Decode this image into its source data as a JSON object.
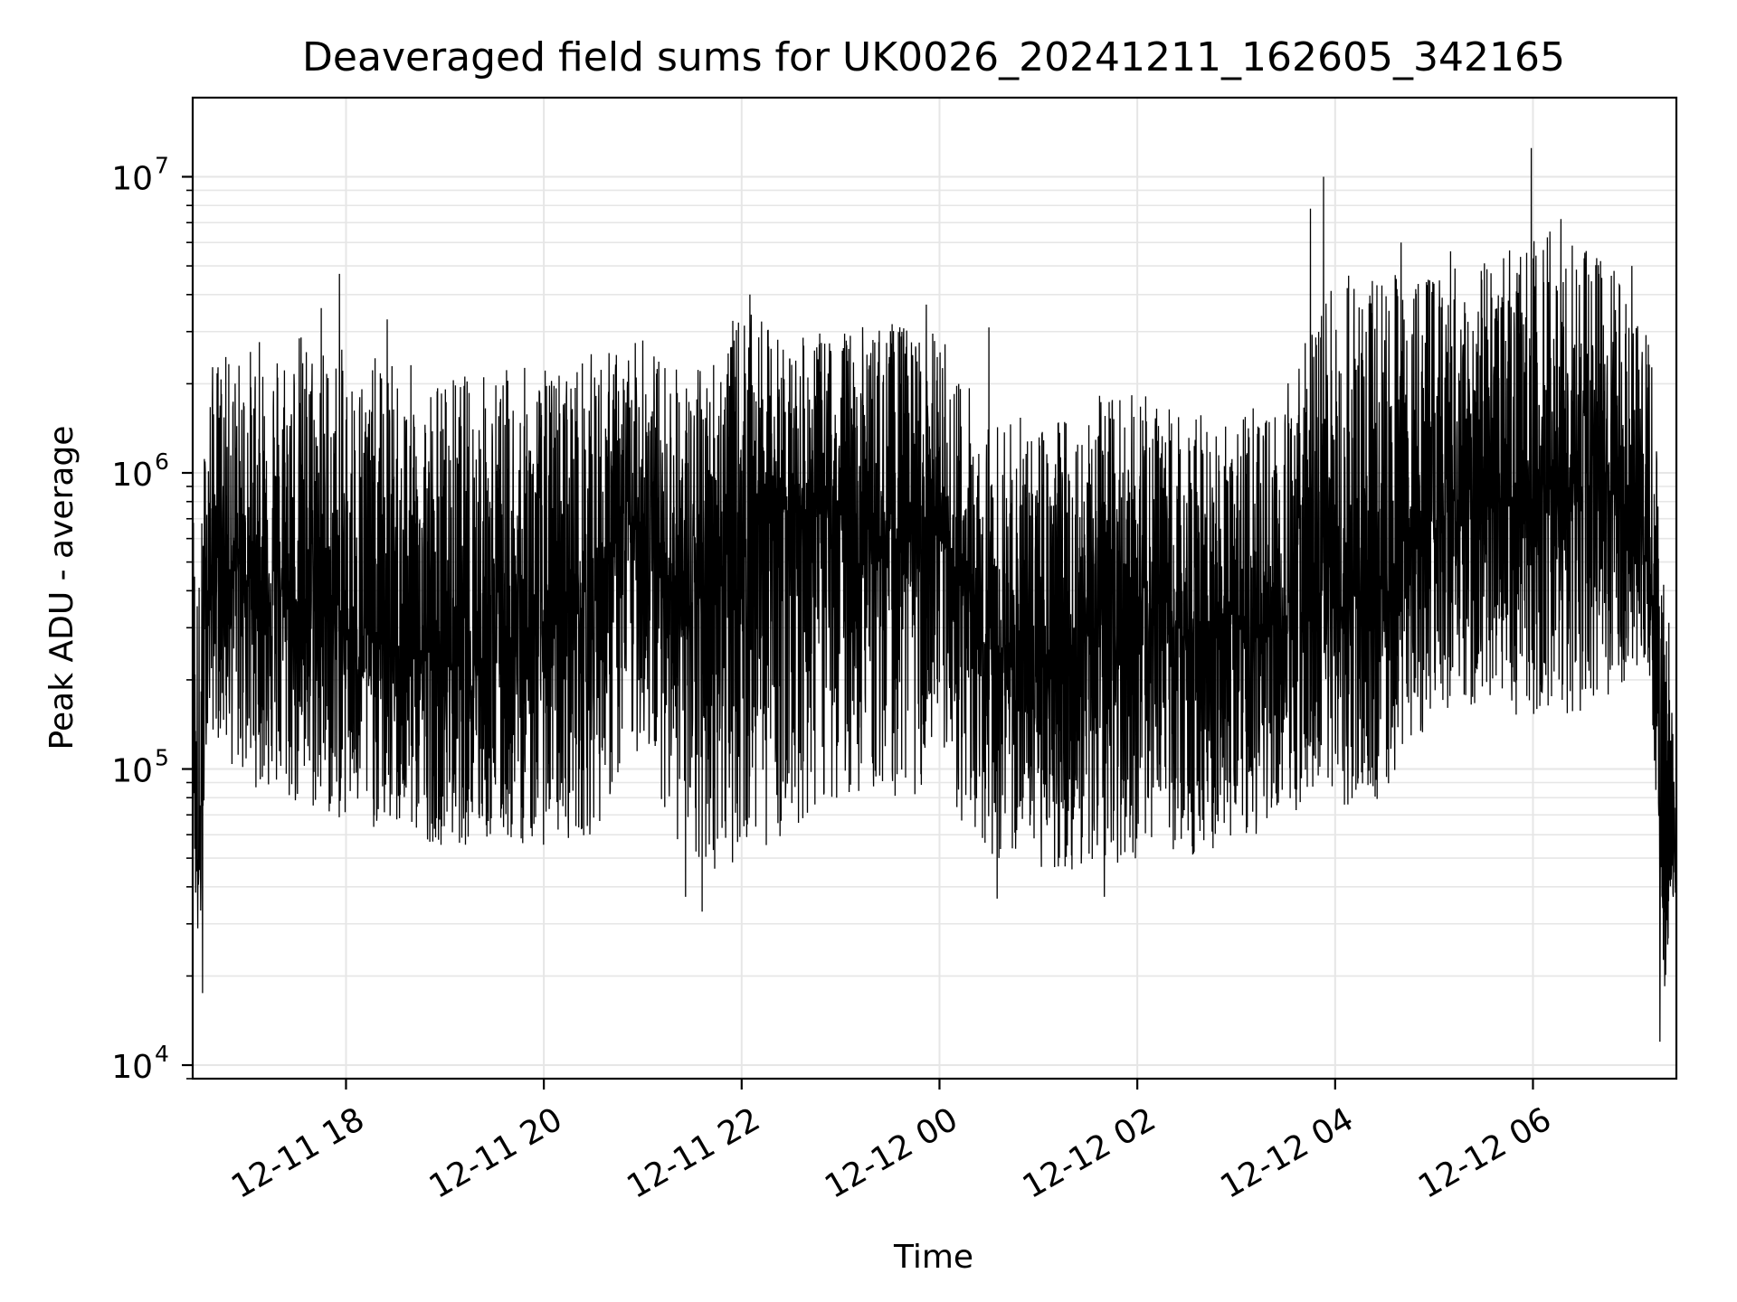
{
  "chart_data": {
    "type": "line",
    "title": "Deaveraged field sums for UK0026_20241211_162605_342165",
    "xlabel": "Time",
    "ylabel": "Peak ADU - average",
    "yscale": "log",
    "ylim": [
      9000,
      18500000
    ],
    "xlim": [
      "2024-12-11 16:27",
      "2024-12-12 07:27"
    ],
    "grid": true,
    "line_color": "#000000",
    "grid_color": "#e6e6e6",
    "x_ticks": [
      {
        "value": "2024-12-11 18:00",
        "label": "12-11 18"
      },
      {
        "value": "2024-12-11 20:00",
        "label": "12-11 20"
      },
      {
        "value": "2024-12-11 22:00",
        "label": "12-11 22"
      },
      {
        "value": "2024-12-12 00:00",
        "label": "12-12 00"
      },
      {
        "value": "2024-12-12 02:00",
        "label": "12-12 02"
      },
      {
        "value": "2024-12-12 04:00",
        "label": "12-12 04"
      },
      {
        "value": "2024-12-12 06:00",
        "label": "12-12 06"
      }
    ],
    "y_ticks": [
      {
        "value": 10000,
        "base": "10",
        "exp": "4"
      },
      {
        "value": 100000,
        "base": "10",
        "exp": "5"
      },
      {
        "value": 1000000,
        "base": "10",
        "exp": "6"
      },
      {
        "value": 10000000,
        "base": "10",
        "exp": "7"
      }
    ],
    "series": [
      {
        "x": [
          "2024-12-11 16:27",
          "2024-12-11 16:29",
          "2024-12-11 16:31",
          "2024-12-11 16:33",
          "2024-12-11 16:35",
          "2024-12-11 16:40",
          "2024-12-11 16:45",
          "2024-12-11 16:50",
          "2024-12-11 17:00",
          "2024-12-11 17:15",
          "2024-12-11 17:30",
          "2024-12-11 18:00",
          "2024-12-11 18:30",
          "2024-12-11 19:00",
          "2024-12-11 19:30",
          "2024-12-11 20:00",
          "2024-12-11 20:30",
          "2024-12-11 21:00",
          "2024-12-11 21:30",
          "2024-12-11 22:00",
          "2024-12-11 22:30",
          "2024-12-11 23:00",
          "2024-12-11 23:30",
          "2024-12-12 00:00",
          "2024-12-12 00:30",
          "2024-12-12 01:00",
          "2024-12-12 01:30",
          "2024-12-12 02:00",
          "2024-12-12 02:30",
          "2024-12-12 03:00",
          "2024-12-12 03:30",
          "2024-12-12 04:00",
          "2024-12-12 04:30",
          "2024-12-12 05:00",
          "2024-12-12 05:30",
          "2024-12-12 06:00",
          "2024-12-12 06:30",
          "2024-12-12 07:00",
          "2024-12-12 07:10",
          "2024-12-12 07:15",
          "2024-12-12 07:18",
          "2024-12-12 07:21",
          "2024-12-12 07:24",
          "2024-12-12 07:27"
        ],
        "median": [
          700000,
          60000,
          45000,
          120000,
          400000,
          500000,
          550000,
          500000,
          450000,
          420000,
          380000,
          300000,
          250000,
          230000,
          250000,
          280000,
          400000,
          700000,
          350000,
          600000,
          800000,
          700000,
          600000,
          600000,
          250000,
          220000,
          280000,
          300000,
          280000,
          300000,
          300000,
          350000,
          450000,
          700000,
          750000,
          900000,
          900000,
          800000,
          700000,
          250000,
          40000,
          35000,
          50000,
          60000
        ],
        "high": [
          800000,
          600000,
          500000,
          900000,
          1900000,
          2500000,
          2600000,
          2400000,
          2700000,
          3000000,
          3200000,
          2600000,
          2400000,
          2200000,
          2300000,
          2300000,
          2600000,
          2800000,
          2200000,
          3600000,
          2800000,
          3100000,
          3300000,
          3000000,
          1600000,
          1500000,
          1800000,
          1900000,
          1600000,
          1500000,
          2200000,
          4500000,
          5500000,
          4800000,
          5500000,
          7000000,
          5800000,
          4500000,
          3000000,
          1800000,
          500000,
          400000,
          250000,
          120000
        ],
        "low": [
          60000,
          30000,
          20000,
          40000,
          120000,
          130000,
          120000,
          100000,
          90000,
          80000,
          70000,
          65000,
          60000,
          55000,
          55000,
          55000,
          60000,
          120000,
          40000,
          50000,
          60000,
          80000,
          80000,
          80000,
          50000,
          45000,
          45000,
          50000,
          50000,
          55000,
          60000,
          65000,
          80000,
          150000,
          150000,
          150000,
          150000,
          200000,
          200000,
          60000,
          20000,
          15000,
          30000,
          40000
        ],
        "spikes": [
          [
            "2024-12-11 16:33",
            17500
          ],
          [
            "2024-12-11 17:56",
            4700000
          ],
          [
            "2024-12-11 17:45",
            3600000
          ],
          [
            "2024-12-11 18:25",
            3300000
          ],
          [
            "2024-12-11 21:00",
            2800000
          ],
          [
            "2024-12-11 21:26",
            37000
          ],
          [
            "2024-12-11 21:36",
            33000
          ],
          [
            "2024-12-11 22:05",
            4000000
          ],
          [
            "2024-12-11 23:52",
            3700000
          ],
          [
            "2024-12-12 00:30",
            3100000
          ],
          [
            "2024-12-12 00:35",
            36500
          ],
          [
            "2024-12-12 01:40",
            37000
          ],
          [
            "2024-12-12 03:45",
            7800000
          ],
          [
            "2024-12-12 03:53",
            10000000
          ],
          [
            "2024-12-12 04:40",
            6000000
          ],
          [
            "2024-12-12 05:10",
            5600000
          ],
          [
            "2024-12-12 05:50",
            4100000
          ],
          [
            "2024-12-12 05:59",
            12500000
          ],
          [
            "2024-12-12 06:17",
            7200000
          ],
          [
            "2024-12-12 07:00",
            5000000
          ],
          [
            "2024-12-12 07:17",
            12000
          ],
          [
            "2024-12-12 07:21",
            270000
          ]
        ]
      }
    ]
  }
}
